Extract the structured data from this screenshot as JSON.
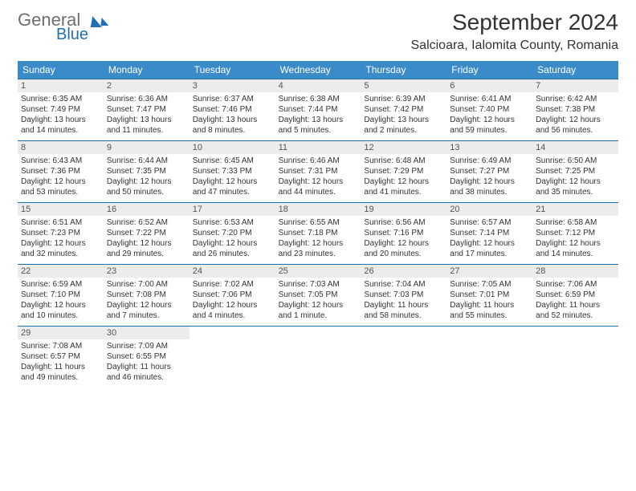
{
  "brand": {
    "part1": "General",
    "part2": "Blue"
  },
  "title": "September 2024",
  "location": "Salcioara, Ialomita County, Romania",
  "dows": [
    "Sunday",
    "Monday",
    "Tuesday",
    "Wednesday",
    "Thursday",
    "Friday",
    "Saturday"
  ],
  "colors": {
    "header_bg": "#3b8bc9",
    "rule": "#1f6fb2",
    "daynum_bg": "#ececec",
    "text": "#333333"
  },
  "weeks": [
    [
      {
        "n": "1",
        "sr": "6:35 AM",
        "ss": "7:49 PM",
        "dl": "13 hours and 14 minutes."
      },
      {
        "n": "2",
        "sr": "6:36 AM",
        "ss": "7:47 PM",
        "dl": "13 hours and 11 minutes."
      },
      {
        "n": "3",
        "sr": "6:37 AM",
        "ss": "7:46 PM",
        "dl": "13 hours and 8 minutes."
      },
      {
        "n": "4",
        "sr": "6:38 AM",
        "ss": "7:44 PM",
        "dl": "13 hours and 5 minutes."
      },
      {
        "n": "5",
        "sr": "6:39 AM",
        "ss": "7:42 PM",
        "dl": "13 hours and 2 minutes."
      },
      {
        "n": "6",
        "sr": "6:41 AM",
        "ss": "7:40 PM",
        "dl": "12 hours and 59 minutes."
      },
      {
        "n": "7",
        "sr": "6:42 AM",
        "ss": "7:38 PM",
        "dl": "12 hours and 56 minutes."
      }
    ],
    [
      {
        "n": "8",
        "sr": "6:43 AM",
        "ss": "7:36 PM",
        "dl": "12 hours and 53 minutes."
      },
      {
        "n": "9",
        "sr": "6:44 AM",
        "ss": "7:35 PM",
        "dl": "12 hours and 50 minutes."
      },
      {
        "n": "10",
        "sr": "6:45 AM",
        "ss": "7:33 PM",
        "dl": "12 hours and 47 minutes."
      },
      {
        "n": "11",
        "sr": "6:46 AM",
        "ss": "7:31 PM",
        "dl": "12 hours and 44 minutes."
      },
      {
        "n": "12",
        "sr": "6:48 AM",
        "ss": "7:29 PM",
        "dl": "12 hours and 41 minutes."
      },
      {
        "n": "13",
        "sr": "6:49 AM",
        "ss": "7:27 PM",
        "dl": "12 hours and 38 minutes."
      },
      {
        "n": "14",
        "sr": "6:50 AM",
        "ss": "7:25 PM",
        "dl": "12 hours and 35 minutes."
      }
    ],
    [
      {
        "n": "15",
        "sr": "6:51 AM",
        "ss": "7:23 PM",
        "dl": "12 hours and 32 minutes."
      },
      {
        "n": "16",
        "sr": "6:52 AM",
        "ss": "7:22 PM",
        "dl": "12 hours and 29 minutes."
      },
      {
        "n": "17",
        "sr": "6:53 AM",
        "ss": "7:20 PM",
        "dl": "12 hours and 26 minutes."
      },
      {
        "n": "18",
        "sr": "6:55 AM",
        "ss": "7:18 PM",
        "dl": "12 hours and 23 minutes."
      },
      {
        "n": "19",
        "sr": "6:56 AM",
        "ss": "7:16 PM",
        "dl": "12 hours and 20 minutes."
      },
      {
        "n": "20",
        "sr": "6:57 AM",
        "ss": "7:14 PM",
        "dl": "12 hours and 17 minutes."
      },
      {
        "n": "21",
        "sr": "6:58 AM",
        "ss": "7:12 PM",
        "dl": "12 hours and 14 minutes."
      }
    ],
    [
      {
        "n": "22",
        "sr": "6:59 AM",
        "ss": "7:10 PM",
        "dl": "12 hours and 10 minutes."
      },
      {
        "n": "23",
        "sr": "7:00 AM",
        "ss": "7:08 PM",
        "dl": "12 hours and 7 minutes."
      },
      {
        "n": "24",
        "sr": "7:02 AM",
        "ss": "7:06 PM",
        "dl": "12 hours and 4 minutes."
      },
      {
        "n": "25",
        "sr": "7:03 AM",
        "ss": "7:05 PM",
        "dl": "12 hours and 1 minute."
      },
      {
        "n": "26",
        "sr": "7:04 AM",
        "ss": "7:03 PM",
        "dl": "11 hours and 58 minutes."
      },
      {
        "n": "27",
        "sr": "7:05 AM",
        "ss": "7:01 PM",
        "dl": "11 hours and 55 minutes."
      },
      {
        "n": "28",
        "sr": "7:06 AM",
        "ss": "6:59 PM",
        "dl": "11 hours and 52 minutes."
      }
    ],
    [
      {
        "n": "29",
        "sr": "7:08 AM",
        "ss": "6:57 PM",
        "dl": "11 hours and 49 minutes."
      },
      {
        "n": "30",
        "sr": "7:09 AM",
        "ss": "6:55 PM",
        "dl": "11 hours and 46 minutes."
      },
      {
        "empty": true
      },
      {
        "empty": true
      },
      {
        "empty": true
      },
      {
        "empty": true
      },
      {
        "empty": true
      }
    ]
  ],
  "labels": {
    "sunrise": "Sunrise:",
    "sunset": "Sunset:",
    "daylight": "Daylight:"
  }
}
